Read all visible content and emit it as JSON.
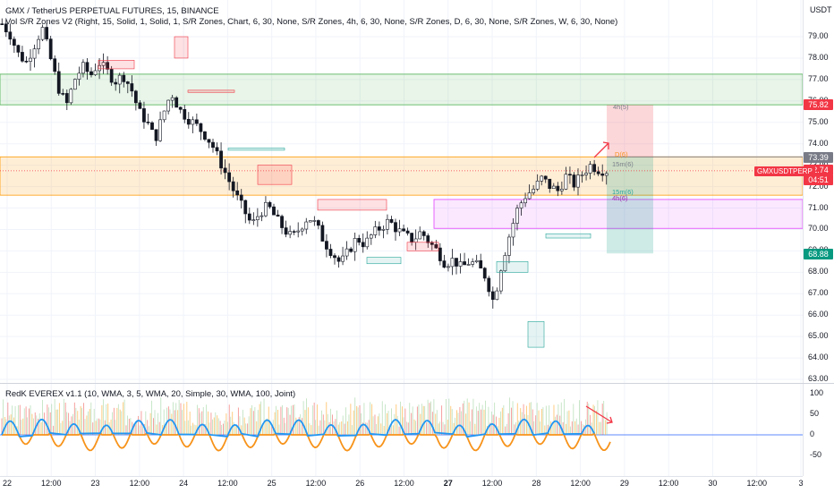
{
  "header": {
    "symbol_title": "GMX / TetherUS PERPETUAL FUTURES, 15, BINANCE",
    "indicator_title": "Vol S/R Zones V2 (Right, 15, Solid, 1, Solid, 1, S/R Zones, Chart, 6, 30, None, S/R Zones, 4h, 6, 30, None, S/R Zones, D, 6, 30, None, S/R Zones, W, 6, 30, None)"
  },
  "price_axis": {
    "currency": "USDT",
    "labels": [
      "79.00",
      "78.00",
      "77.00",
      "76.00",
      "75.00",
      "74.00",
      "73.00",
      "72.00",
      "71.00",
      "70.00",
      "69.00",
      "68.00",
      "67.00",
      "66.00",
      "65.00",
      "64.00",
      "63.00"
    ],
    "tags": {
      "stop": "75.82",
      "entry": "73.39",
      "last_price": "72.74",
      "countdown": "04:51",
      "target": "68.88"
    },
    "symbol_tag": "GMXUSDTPERP"
  },
  "zone_labels": {
    "h4": "4h(5)",
    "d": "D(6)",
    "m15": "15m(6)",
    "m15b": "15m(6)",
    "h4b": "4h(6)"
  },
  "oscillator": {
    "title": "RedK EVEREX v1.1 (10, WMA, 3, 5, WMA, 20, Simple, 30, WMA, 100, Joint)",
    "axis_labels": [
      "100",
      "50",
      "0",
      "-50"
    ]
  },
  "time_axis": {
    "labels": [
      {
        "text": "22",
        "bold": false
      },
      {
        "text": "12:00",
        "bold": false
      },
      {
        "text": "23",
        "bold": false
      },
      {
        "text": "12:00",
        "bold": false
      },
      {
        "text": "24",
        "bold": false
      },
      {
        "text": "12:00",
        "bold": false
      },
      {
        "text": "25",
        "bold": false
      },
      {
        "text": "12:00",
        "bold": false
      },
      {
        "text": "26",
        "bold": false
      },
      {
        "text": "12:00",
        "bold": false
      },
      {
        "text": "27",
        "bold": true
      },
      {
        "text": "12:00",
        "bold": false
      },
      {
        "text": "28",
        "bold": false
      },
      {
        "text": "12:00",
        "bold": false
      },
      {
        "text": "29",
        "bold": false
      },
      {
        "text": "12:00",
        "bold": false
      },
      {
        "text": "30",
        "bold": false
      },
      {
        "text": "12:00",
        "bold": false
      },
      {
        "text": "3",
        "bold": false
      }
    ]
  },
  "colors": {
    "up": "#26a69a",
    "down": "#ef5350",
    "candle": "#131722",
    "profit_zone": "#26a69a",
    "loss_zone": "#f23645",
    "osc_blue": "#2196f3",
    "osc_orange": "#f7931a"
  },
  "chart_data": {
    "type": "candlestick",
    "price_range": [
      63,
      80
    ],
    "oscillator_range": [
      -75,
      110
    ],
    "candle_price_path": [
      79.6,
      79.1,
      78.2,
      77.8,
      78.6,
      79.4,
      78.0,
      76.6,
      75.8,
      77.0,
      77.6,
      77.2,
      77.8,
      77.4,
      76.9,
      77.2,
      76.6,
      75.5,
      75.0,
      74.2,
      75.4,
      76.4,
      75.6,
      75.2,
      74.9,
      74.5,
      74.0,
      73.2,
      72.4,
      71.6,
      70.9,
      70.2,
      70.8,
      71.1,
      70.5,
      70.0,
      69.6,
      70.1,
      70.6,
      70.2,
      69.4,
      68.9,
      68.4,
      69.0,
      69.6,
      69.3,
      69.8,
      70.1,
      70.4,
      70.0,
      69.7,
      69.5,
      69.9,
      69.4,
      69.0,
      68.4,
      68.6,
      68.2,
      68.5,
      68.3,
      67.8,
      66.6,
      68.4,
      69.8,
      71.0,
      71.6,
      71.9,
      72.4,
      72.0,
      71.8,
      72.5,
      72.1,
      72.6,
      73.0,
      72.8,
      72.74
    ],
    "zones": [
      {
        "label": "4h(5)",
        "from_price": 75.82,
        "to_price": 77.25
      },
      {
        "label": "D(6)",
        "from_price": 71.6,
        "to_price": 73.39
      },
      {
        "label": "4h(6)",
        "from_price": 70.05,
        "to_price": 71.4
      }
    ],
    "position": {
      "entry": 73.39,
      "stop": 75.82,
      "target": 68.88,
      "last": 72.74
    }
  }
}
